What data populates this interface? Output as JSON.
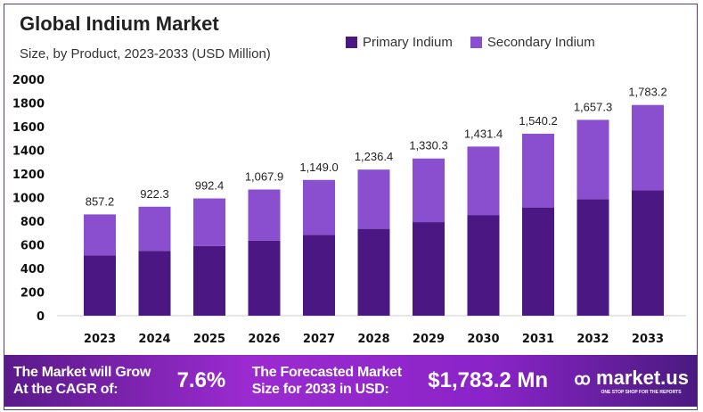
{
  "chart_data": {
    "type": "bar",
    "stacked": true,
    "title": "Global Indium Market",
    "subtitle": "Size, by Product, 2023-2033 (USD Million)",
    "categories": [
      "2023",
      "2024",
      "2025",
      "2026",
      "2027",
      "2028",
      "2029",
      "2030",
      "2031",
      "2032",
      "2033"
    ],
    "series": [
      {
        "name": "Primary Indium",
        "color": "#4b1782",
        "values": [
          510,
          549,
          590,
          635,
          684,
          735,
          792,
          852,
          916,
          986,
          1061
        ]
      },
      {
        "name": "Secondary Indium",
        "color": "#8a4fcf",
        "values": [
          347.2,
          373.3,
          402.4,
          432.9,
          465.0,
          501.4,
          538.3,
          579.4,
          624.2,
          671.3,
          722.2
        ]
      }
    ],
    "totals": [
      857.2,
      922.3,
      992.4,
      1067.9,
      1149.0,
      1236.4,
      1330.3,
      1431.4,
      1540.2,
      1657.3,
      1783.2
    ],
    "total_labels": [
      "857.2",
      "922.3",
      "992.4",
      "1,067.9",
      "1,149.0",
      "1,236.4",
      "1,330.3",
      "1,431.4",
      "1,540.2",
      "1,657.3",
      "1,783.2"
    ],
    "yticks": [
      "0",
      "200",
      "400",
      "600",
      "800",
      "1000",
      "1200",
      "1400",
      "1600",
      "1800",
      "2000"
    ],
    "ylim": [
      0,
      2000
    ],
    "grid": false,
    "legend": "top-right"
  },
  "banner": {
    "cagr_text_1": "The Market will Grow",
    "cagr_text_2": "At the CAGR of:",
    "cagr_value": "7.6%",
    "forecast_text_1": "The Forecasted Market",
    "forecast_text_2": "Size for 2033 in USD:",
    "forecast_value": "$1,783.2 Mn",
    "brand": "market.us",
    "brand_tagline": "ONE STOP SHOP FOR THE REPORTS"
  }
}
